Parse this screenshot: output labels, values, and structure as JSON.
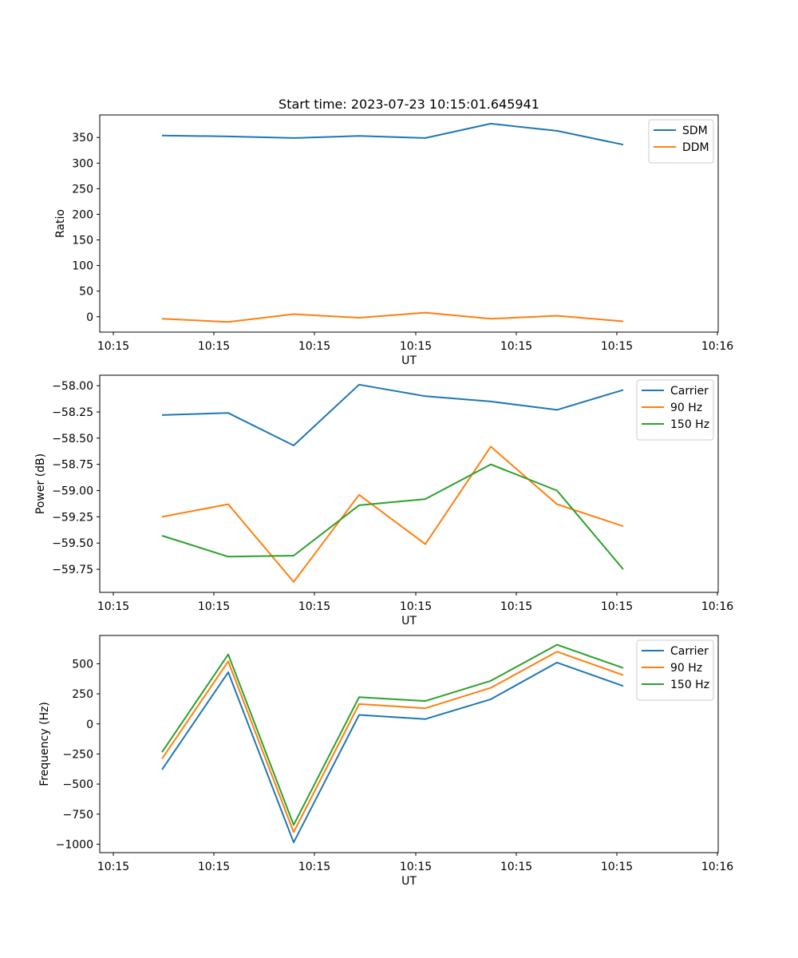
{
  "chart_data": [
    {
      "type": "line",
      "title": "Start time: 2023-07-23 10:15:01.645941",
      "xlabel": "UT",
      "ylabel": "Ratio",
      "x_ticks": [
        "10:15",
        "10:15",
        "10:15",
        "10:15",
        "10:15",
        "10:15",
        "10:16"
      ],
      "y_ticks": [
        0,
        50,
        100,
        150,
        200,
        250,
        300,
        350
      ],
      "ylim": [
        -30,
        394
      ],
      "legend": "top-right",
      "series": [
        {
          "name": "SDM",
          "color": "#1f77b4",
          "values": [
            354,
            352,
            349,
            353,
            349,
            377,
            363,
            336
          ]
        },
        {
          "name": "DDM",
          "color": "#ff7f0e",
          "values": [
            -4,
            -10,
            5,
            -2,
            8,
            -4,
            2,
            -9
          ]
        }
      ]
    },
    {
      "type": "line",
      "title": "",
      "xlabel": "UT",
      "ylabel": "Power (dB)",
      "x_ticks": [
        "10:15",
        "10:15",
        "10:15",
        "10:15",
        "10:15",
        "10:15",
        "10:16"
      ],
      "y_ticks": [
        -59.75,
        -59.5,
        -59.25,
        -59.0,
        -58.75,
        -58.5,
        -58.25,
        -58.0
      ],
      "y_tick_labels": [
        "−59.75",
        "−59.50",
        "−59.25",
        "−59.00",
        "−58.75",
        "−58.50",
        "−58.25",
        "−58.00"
      ],
      "ylim": [
        -59.97,
        -57.9
      ],
      "legend": "top-right",
      "series": [
        {
          "name": "Carrier",
          "color": "#1f77b4",
          "values": [
            -58.28,
            -58.26,
            -58.57,
            -57.99,
            -58.1,
            -58.15,
            -58.23,
            -58.04
          ]
        },
        {
          "name": "90 Hz",
          "color": "#ff7f0e",
          "values": [
            -59.25,
            -59.13,
            -59.87,
            -59.04,
            -59.51,
            -58.58,
            -59.13,
            -59.34
          ]
        },
        {
          "name": "150 Hz",
          "color": "#2ca02c",
          "values": [
            -59.43,
            -59.63,
            -59.62,
            -59.14,
            -59.08,
            -58.75,
            -59.0,
            -59.75
          ]
        }
      ]
    },
    {
      "type": "line",
      "title": "",
      "xlabel": "UT",
      "ylabel": "Frequency (Hz)",
      "x_ticks": [
        "10:15",
        "10:15",
        "10:15",
        "10:15",
        "10:15",
        "10:15",
        "10:16"
      ],
      "y_ticks": [
        -1000,
        -750,
        -500,
        -250,
        0,
        250,
        500
      ],
      "y_tick_labels": [
        "−1000",
        "−750",
        "−500",
        "−250",
        "0",
        "250",
        "500"
      ],
      "ylim": [
        -1070,
        735
      ],
      "legend": "top-right",
      "series": [
        {
          "name": "Carrier",
          "color": "#1f77b4",
          "values": [
            -380,
            430,
            -985,
            75,
            40,
            205,
            510,
            315
          ]
        },
        {
          "name": "90 Hz",
          "color": "#ff7f0e",
          "values": [
            -290,
            520,
            -900,
            165,
            130,
            300,
            600,
            405
          ]
        },
        {
          "name": "150 Hz",
          "color": "#2ca02c",
          "values": [
            -235,
            578,
            -840,
            222,
            190,
            358,
            658,
            465
          ]
        }
      ]
    }
  ]
}
